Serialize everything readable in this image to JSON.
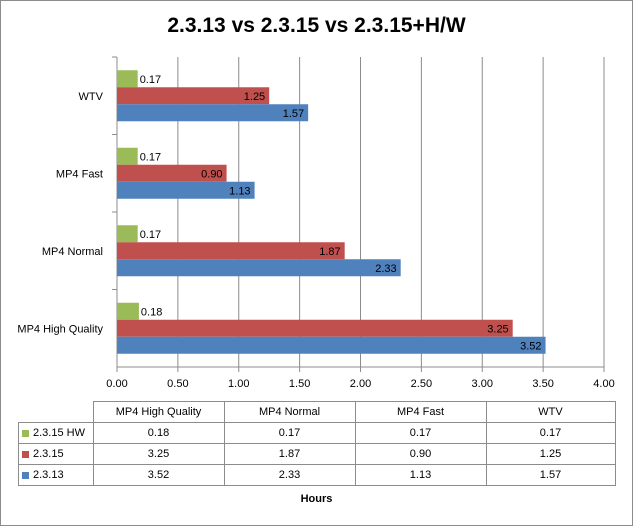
{
  "chart_data": {
    "type": "bar",
    "orientation": "horizontal",
    "title": "2.3.13 vs 2.3.15 vs 2.3.15+H/W",
    "xlabel": "Hours",
    "ylabel": "",
    "xlim": [
      0,
      4
    ],
    "x_ticks": [
      "0.00",
      "0.50",
      "1.00",
      "1.50",
      "2.00",
      "2.50",
      "3.00",
      "3.50",
      "4.00"
    ],
    "grid": true,
    "categories": [
      "MP4 High Quality",
      "MP4 Normal",
      "MP4 Fast",
      "WTV"
    ],
    "series": [
      {
        "name": "2.3.15 HW",
        "color": "#9bbb59",
        "values": [
          0.18,
          0.17,
          0.17,
          0.17
        ],
        "labels": [
          "0.18",
          "0.17",
          "0.17",
          "0.17"
        ]
      },
      {
        "name": "2.3.15",
        "color": "#c0504d",
        "values": [
          3.25,
          1.87,
          0.9,
          1.25
        ],
        "labels": [
          "3.25",
          "1.87",
          "0.90",
          "1.25"
        ]
      },
      {
        "name": "2.3.13",
        "color": "#4f81bd",
        "values": [
          3.52,
          2.33,
          1.13,
          1.57
        ],
        "labels": [
          "3.52",
          "2.33",
          "1.13",
          "1.57"
        ]
      }
    ]
  }
}
